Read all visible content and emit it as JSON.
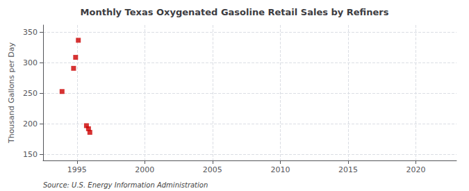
{
  "chart_data": {
    "type": "scatter",
    "title": "Monthly Texas Oxygenated Gasoline Retail Sales by Refiners",
    "ylabel": "Thousand Gallons per Day",
    "source": "Source: U.S. Energy Information Administration",
    "x": [
      1993.9,
      1994.75,
      1994.9,
      1995.1,
      1995.7,
      1995.85,
      1995.95
    ],
    "values": [
      253,
      291,
      309,
      337,
      197,
      192,
      186
    ],
    "color": "#cc0000",
    "marker": "square",
    "xlim": [
      1992.5,
      2023
    ],
    "ylim": [
      140,
      362
    ],
    "xticks": [
      1995,
      2000,
      2005,
      2010,
      2015,
      2020
    ],
    "yticks": [
      150,
      200,
      250,
      300,
      350
    ],
    "grid": true
  }
}
